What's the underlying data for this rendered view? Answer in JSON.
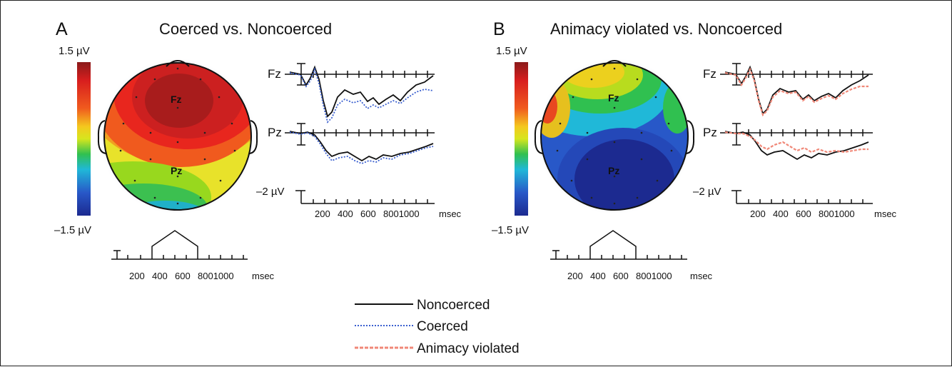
{
  "panels": [
    {
      "letter": "A",
      "title": "Coerced vs. Noncoerced",
      "scale_max": "1.5 µV",
      "scale_min": "–1.5 µV",
      "electrodes": [
        "Fz",
        "Pz"
      ],
      "channels": [
        "Fz",
        "Pz"
      ],
      "wave_amp_label": "–2 µV",
      "time_ticks": [
        "200",
        "400",
        "600",
        "8001000"
      ],
      "time_unit": "msec",
      "contrast_color": "#3a5fcf",
      "contrast_style": "dotted",
      "topo_pattern": "frontal-positive"
    },
    {
      "letter": "B",
      "title": "Animacy violated vs. Noncoerced",
      "scale_max": "1.5 µV",
      "scale_min": "–1.5 µV",
      "electrodes": [
        "Fz",
        "Pz"
      ],
      "channels": [
        "Fz",
        "Pz"
      ],
      "wave_amp_label": "–2 µV",
      "time_ticks": [
        "200",
        "400",
        "600",
        "8001000"
      ],
      "time_unit": "msec",
      "contrast_color": "#f08878",
      "contrast_style": "dashed",
      "topo_pattern": "posterior-negative"
    }
  ],
  "legend": [
    {
      "label": "Noncoerced",
      "color": "#111111",
      "style": "solid"
    },
    {
      "label": "Coerced",
      "color": "#3a5fcf",
      "style": "dotted"
    },
    {
      "label": "Animacy violated",
      "color": "#f08878",
      "style": "dashed"
    }
  ],
  "colors": {
    "scale_top": "#8b1a1a",
    "scale_red": "#e02020",
    "scale_yellow": "#ecec20",
    "scale_green": "#30c050",
    "scale_cyan": "#20b8d8",
    "scale_blue": "#2840b0",
    "scale_bottom": "#1c2a90"
  }
}
